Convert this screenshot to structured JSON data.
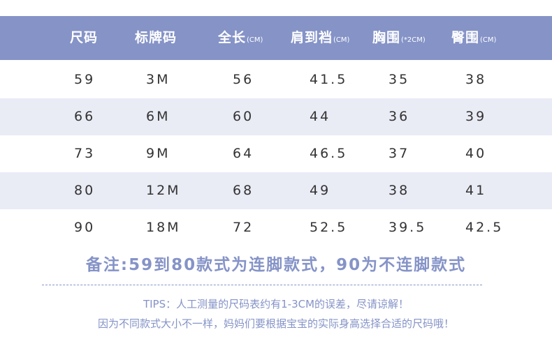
{
  "table": {
    "headers": [
      {
        "main": "尺码",
        "unit": ""
      },
      {
        "main": "标牌码",
        "unit": ""
      },
      {
        "main": "全长",
        "unit": "(CM)"
      },
      {
        "main": "肩到裆",
        "unit": "(CM)"
      },
      {
        "main": "胸围",
        "unit": "(*2CM)"
      },
      {
        "main": "臀围",
        "unit": "(CM)"
      }
    ],
    "rows": [
      [
        "59",
        "3M",
        "56",
        "41.5",
        "35",
        "38"
      ],
      [
        "66",
        "6M",
        "60",
        "44",
        "36",
        "39"
      ],
      [
        "73",
        "9M",
        "64",
        "46.5",
        "37",
        "40"
      ],
      [
        "80",
        "12M",
        "68",
        "49",
        "38",
        "41"
      ],
      [
        "90",
        "18M",
        "72",
        "52.5",
        "39.5",
        "42.5"
      ]
    ]
  },
  "note": "备注:59到80款式为连脚款式，90为不连脚款式",
  "tips_line1": "TIPS：人工测量的尺码表约有1-3CM的误差，尽请谅解！",
  "tips_line2": "因为不同款式大小不一样，妈妈们要根据宝宝的实际身高选择合适的尺码哦！",
  "colors": {
    "accent": "#8593c7",
    "row_alt": "#e9ebf5",
    "text": "#333333"
  }
}
